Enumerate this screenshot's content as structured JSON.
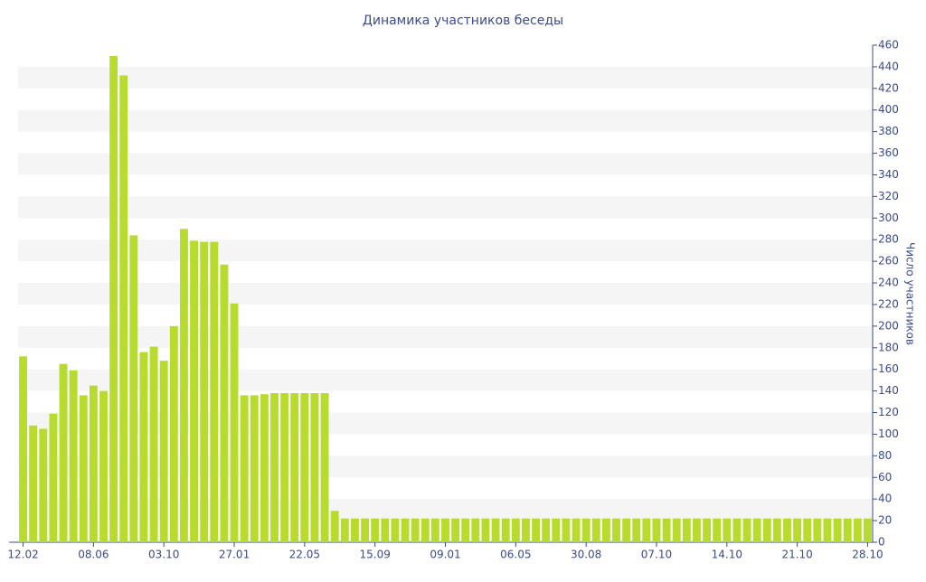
{
  "chart_data": {
    "type": "bar",
    "title": "Динамика участников беседы",
    "y_label": "Число участников",
    "categories": [
      "12.02",
      null,
      null,
      null,
      null,
      null,
      null,
      "08.06",
      null,
      null,
      null,
      null,
      null,
      null,
      "03.10",
      null,
      null,
      null,
      null,
      null,
      null,
      "27.01",
      null,
      null,
      null,
      null,
      null,
      null,
      "22.05",
      null,
      null,
      null,
      null,
      null,
      null,
      "15.09",
      null,
      null,
      null,
      null,
      null,
      null,
      "09.01",
      null,
      null,
      null,
      null,
      null,
      null,
      "06.05",
      null,
      null,
      null,
      null,
      null,
      null,
      "30.08",
      null,
      null,
      null,
      null,
      null,
      null,
      "07.10",
      null,
      null,
      null,
      null,
      null,
      null,
      "14.10",
      null,
      null,
      null,
      null,
      null,
      null,
      "21.10",
      null,
      null,
      null,
      null,
      null,
      null,
      "28.10"
    ],
    "values": [
      172,
      108,
      105,
      119,
      165,
      159,
      136,
      145,
      140,
      450,
      432,
      284,
      176,
      181,
      168,
      200,
      290,
      279,
      278,
      278,
      257,
      221,
      136,
      136,
      137,
      138,
      138,
      138,
      138,
      138,
      138,
      29,
      22,
      22,
      22,
      22,
      22,
      22,
      22,
      22,
      22,
      22,
      22,
      22,
      22,
      22,
      22,
      22,
      22,
      22,
      22,
      22,
      22,
      22,
      22,
      22,
      22,
      22,
      22,
      22,
      22,
      22,
      22,
      22,
      22,
      22,
      22,
      22,
      22,
      22,
      22,
      22,
      22,
      22,
      22,
      22,
      22,
      22,
      22,
      22,
      22,
      22,
      22,
      22,
      22
    ],
    "color": "#b8dc2e",
    "ylim": [
      0,
      460
    ],
    "yticks": [
      0,
      20,
      40,
      60,
      80,
      100,
      120,
      140,
      160,
      180,
      200,
      220,
      240,
      260,
      280,
      300,
      320,
      340,
      360,
      380,
      400,
      420,
      440,
      460
    ],
    "grid": true
  }
}
